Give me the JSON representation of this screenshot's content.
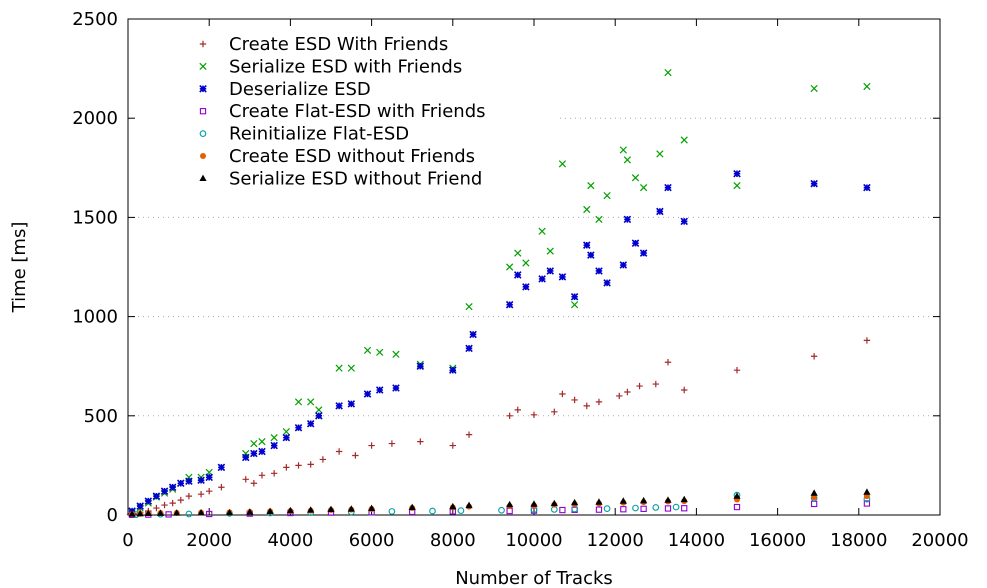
{
  "chart_data": {
    "type": "scatter",
    "title": "",
    "xlabel": "Number of Tracks",
    "ylabel": "Time [ms]",
    "xlim": [
      0,
      20000
    ],
    "ylim": [
      0,
      2500
    ],
    "x_ticks": [
      0,
      2000,
      4000,
      6000,
      8000,
      10000,
      12000,
      14000,
      16000,
      18000,
      20000
    ],
    "y_ticks": [
      0,
      500,
      1000,
      1500,
      2000,
      2500
    ],
    "grid": true,
    "legend_position": "top-left",
    "series": [
      {
        "name": "Create ESD With Friends",
        "color": "#a52a2a",
        "marker": "plus",
        "points": [
          [
            50,
            3
          ],
          [
            150,
            6
          ],
          [
            300,
            12
          ],
          [
            500,
            20
          ],
          [
            700,
            35
          ],
          [
            900,
            50
          ],
          [
            1100,
            60
          ],
          [
            1300,
            75
          ],
          [
            1500,
            95
          ],
          [
            1800,
            105
          ],
          [
            2000,
            120
          ],
          [
            2300,
            140
          ],
          [
            2900,
            180
          ],
          [
            3100,
            160
          ],
          [
            3300,
            200
          ],
          [
            3600,
            210
          ],
          [
            3900,
            240
          ],
          [
            4200,
            250
          ],
          [
            4500,
            255
          ],
          [
            4800,
            280
          ],
          [
            5200,
            320
          ],
          [
            5600,
            300
          ],
          [
            6000,
            350
          ],
          [
            6500,
            360
          ],
          [
            7200,
            370
          ],
          [
            8000,
            350
          ],
          [
            8400,
            405
          ],
          [
            9400,
            500
          ],
          [
            9600,
            530
          ],
          [
            10000,
            505
          ],
          [
            10500,
            520
          ],
          [
            10700,
            610
          ],
          [
            11000,
            580
          ],
          [
            11300,
            550
          ],
          [
            11600,
            570
          ],
          [
            12100,
            600
          ],
          [
            12300,
            620
          ],
          [
            12600,
            650
          ],
          [
            13000,
            660
          ],
          [
            13300,
            770
          ],
          [
            13700,
            630
          ],
          [
            15000,
            730
          ],
          [
            16900,
            800
          ],
          [
            18200,
            880
          ]
        ]
      },
      {
        "name": "Serialize ESD with Friends",
        "color": "#00a000",
        "marker": "cross",
        "points": [
          [
            100,
            15
          ],
          [
            300,
            35
          ],
          [
            500,
            60
          ],
          [
            700,
            90
          ],
          [
            900,
            110
          ],
          [
            1100,
            130
          ],
          [
            1300,
            160
          ],
          [
            1500,
            190
          ],
          [
            1800,
            190
          ],
          [
            2000,
            215
          ],
          [
            2300,
            240
          ],
          [
            2900,
            310
          ],
          [
            3100,
            360
          ],
          [
            3300,
            370
          ],
          [
            3600,
            390
          ],
          [
            3900,
            420
          ],
          [
            4200,
            570
          ],
          [
            4500,
            570
          ],
          [
            4700,
            530
          ],
          [
            5200,
            740
          ],
          [
            5500,
            740
          ],
          [
            5900,
            830
          ],
          [
            6200,
            820
          ],
          [
            6600,
            810
          ],
          [
            7200,
            760
          ],
          [
            8000,
            740
          ],
          [
            8400,
            1050
          ],
          [
            9400,
            1250
          ],
          [
            9600,
            1320
          ],
          [
            9800,
            1270
          ],
          [
            10200,
            1430
          ],
          [
            10400,
            1330
          ],
          [
            10700,
            1770
          ],
          [
            11000,
            1060
          ],
          [
            11300,
            1540
          ],
          [
            11400,
            1660
          ],
          [
            11600,
            1490
          ],
          [
            11800,
            1610
          ],
          [
            12200,
            1840
          ],
          [
            12300,
            1790
          ],
          [
            12500,
            1700
          ],
          [
            12700,
            1650
          ],
          [
            13100,
            1820
          ],
          [
            13300,
            2230
          ],
          [
            13700,
            1890
          ],
          [
            15000,
            1660
          ],
          [
            16900,
            2150
          ],
          [
            18200,
            2160
          ]
        ]
      },
      {
        "name": "Deserialize ESD",
        "color": "#0000cd",
        "marker": "star",
        "points": [
          [
            100,
            20
          ],
          [
            300,
            45
          ],
          [
            500,
            70
          ],
          [
            700,
            95
          ],
          [
            900,
            120
          ],
          [
            1100,
            140
          ],
          [
            1300,
            160
          ],
          [
            1500,
            170
          ],
          [
            1800,
            175
          ],
          [
            2000,
            190
          ],
          [
            2300,
            240
          ],
          [
            2900,
            290
          ],
          [
            3100,
            310
          ],
          [
            3300,
            320
          ],
          [
            3600,
            350
          ],
          [
            3900,
            390
          ],
          [
            4200,
            440
          ],
          [
            4500,
            460
          ],
          [
            4700,
            500
          ],
          [
            5200,
            550
          ],
          [
            5500,
            560
          ],
          [
            5900,
            610
          ],
          [
            6200,
            630
          ],
          [
            6600,
            640
          ],
          [
            7200,
            750
          ],
          [
            8000,
            730
          ],
          [
            8400,
            840
          ],
          [
            8500,
            910
          ],
          [
            9400,
            1060
          ],
          [
            9600,
            1210
          ],
          [
            9800,
            1150
          ],
          [
            10200,
            1190
          ],
          [
            10400,
            1230
          ],
          [
            10700,
            1200
          ],
          [
            11000,
            1100
          ],
          [
            11300,
            1360
          ],
          [
            11400,
            1310
          ],
          [
            11600,
            1230
          ],
          [
            11800,
            1170
          ],
          [
            12200,
            1260
          ],
          [
            12300,
            1490
          ],
          [
            12500,
            1370
          ],
          [
            12700,
            1320
          ],
          [
            13100,
            1530
          ],
          [
            13300,
            1650
          ],
          [
            13700,
            1480
          ],
          [
            15000,
            1720
          ],
          [
            16900,
            1670
          ],
          [
            18200,
            1650
          ]
        ]
      },
      {
        "name": "Create Flat-ESD with Friends",
        "color": "#9400d3",
        "marker": "square",
        "points": [
          [
            100,
            1
          ],
          [
            500,
            2
          ],
          [
            1000,
            3
          ],
          [
            2000,
            5
          ],
          [
            3000,
            7
          ],
          [
            4000,
            10
          ],
          [
            5000,
            12
          ],
          [
            6000,
            14
          ],
          [
            7000,
            16
          ],
          [
            8000,
            18
          ],
          [
            9400,
            20
          ],
          [
            10000,
            22
          ],
          [
            10700,
            25
          ],
          [
            11000,
            26
          ],
          [
            11600,
            27
          ],
          [
            12200,
            29
          ],
          [
            12700,
            31
          ],
          [
            13300,
            33
          ],
          [
            13700,
            34
          ],
          [
            15000,
            40
          ],
          [
            16900,
            56
          ],
          [
            18200,
            58
          ]
        ]
      },
      {
        "name": "Reinitialize Flat-ESD",
        "color": "#00a0a0",
        "marker": "circle",
        "points": [
          [
            200,
            2
          ],
          [
            800,
            4
          ],
          [
            1500,
            5
          ],
          [
            2500,
            8
          ],
          [
            3500,
            10
          ],
          [
            4500,
            12
          ],
          [
            5500,
            15
          ],
          [
            6500,
            18
          ],
          [
            7500,
            20
          ],
          [
            8200,
            22
          ],
          [
            9200,
            24
          ],
          [
            10000,
            26
          ],
          [
            10500,
            28
          ],
          [
            11000,
            30
          ],
          [
            11800,
            32
          ],
          [
            12500,
            35
          ],
          [
            13000,
            38
          ],
          [
            13500,
            40
          ],
          [
            15000,
            100
          ],
          [
            16900,
            85
          ],
          [
            18200,
            80
          ]
        ]
      },
      {
        "name": "Create ESD without Friends",
        "color": "#e85d00",
        "marker": "disc",
        "points": [
          [
            100,
            5
          ],
          [
            300,
            7
          ],
          [
            500,
            9
          ],
          [
            800,
            10
          ],
          [
            1200,
            11
          ],
          [
            1800,
            12
          ],
          [
            2500,
            13
          ],
          [
            3000,
            15
          ],
          [
            3500,
            18
          ],
          [
            4000,
            20
          ],
          [
            4500,
            22
          ],
          [
            5000,
            25
          ],
          [
            5500,
            27
          ],
          [
            6000,
            30
          ],
          [
            7000,
            35
          ],
          [
            8000,
            38
          ],
          [
            8400,
            42
          ],
          [
            9400,
            45
          ],
          [
            10000,
            48
          ],
          [
            10500,
            52
          ],
          [
            11000,
            55
          ],
          [
            11600,
            58
          ],
          [
            12200,
            62
          ],
          [
            12700,
            65
          ],
          [
            13300,
            68
          ],
          [
            13700,
            70
          ],
          [
            15000,
            78
          ],
          [
            16900,
            90
          ],
          [
            18200,
            95
          ]
        ]
      },
      {
        "name": "Serialize ESD without Friend",
        "color": "#000000",
        "marker": "triangle",
        "points": [
          [
            100,
            5
          ],
          [
            300,
            6
          ],
          [
            500,
            8
          ],
          [
            800,
            9
          ],
          [
            1200,
            10
          ],
          [
            1800,
            11
          ],
          [
            2500,
            12
          ],
          [
            3000,
            15
          ],
          [
            3500,
            18
          ],
          [
            4000,
            22
          ],
          [
            4500,
            25
          ],
          [
            5000,
            28
          ],
          [
            5500,
            30
          ],
          [
            6000,
            33
          ],
          [
            7000,
            38
          ],
          [
            8000,
            42
          ],
          [
            8400,
            48
          ],
          [
            9400,
            52
          ],
          [
            10000,
            55
          ],
          [
            10500,
            58
          ],
          [
            11000,
            62
          ],
          [
            11600,
            65
          ],
          [
            12200,
            70
          ],
          [
            12700,
            72
          ],
          [
            13300,
            75
          ],
          [
            13700,
            78
          ],
          [
            15000,
            95
          ],
          [
            16900,
            110
          ],
          [
            18200,
            115
          ]
        ]
      }
    ]
  }
}
